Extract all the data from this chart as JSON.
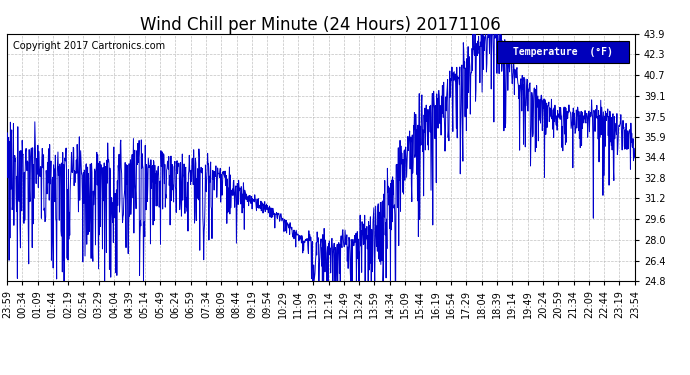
{
  "title": "Wind Chill per Minute (24 Hours) 20171106",
  "copyright_text": "Copyright 2017 Cartronics.com",
  "legend_label": "Temperature  (°F)",
  "line_color": "#0000CC",
  "legend_bg": "#0000BB",
  "legend_fg": "#FFFFFF",
  "background_color": "#FFFFFF",
  "grid_color": "#BBBBBB",
  "ylim": [
    24.8,
    43.9
  ],
  "yticks": [
    24.8,
    26.4,
    28.0,
    29.6,
    31.2,
    32.8,
    34.4,
    35.9,
    37.5,
    39.1,
    40.7,
    42.3,
    43.9
  ],
  "xtick_labels": [
    "23:59",
    "00:34",
    "01:09",
    "01:44",
    "02:19",
    "02:54",
    "03:29",
    "04:04",
    "04:39",
    "05:14",
    "05:49",
    "06:24",
    "06:59",
    "07:34",
    "08:09",
    "08:44",
    "09:19",
    "09:54",
    "10:29",
    "11:04",
    "11:39",
    "12:14",
    "12:49",
    "13:24",
    "13:59",
    "14:34",
    "15:09",
    "15:44",
    "16:19",
    "16:54",
    "17:29",
    "18:04",
    "18:39",
    "19:14",
    "19:49",
    "20:24",
    "20:59",
    "21:34",
    "22:09",
    "22:44",
    "23:19",
    "23:54"
  ],
  "title_fontsize": 12,
  "tick_fontsize": 7,
  "copyright_fontsize": 7
}
